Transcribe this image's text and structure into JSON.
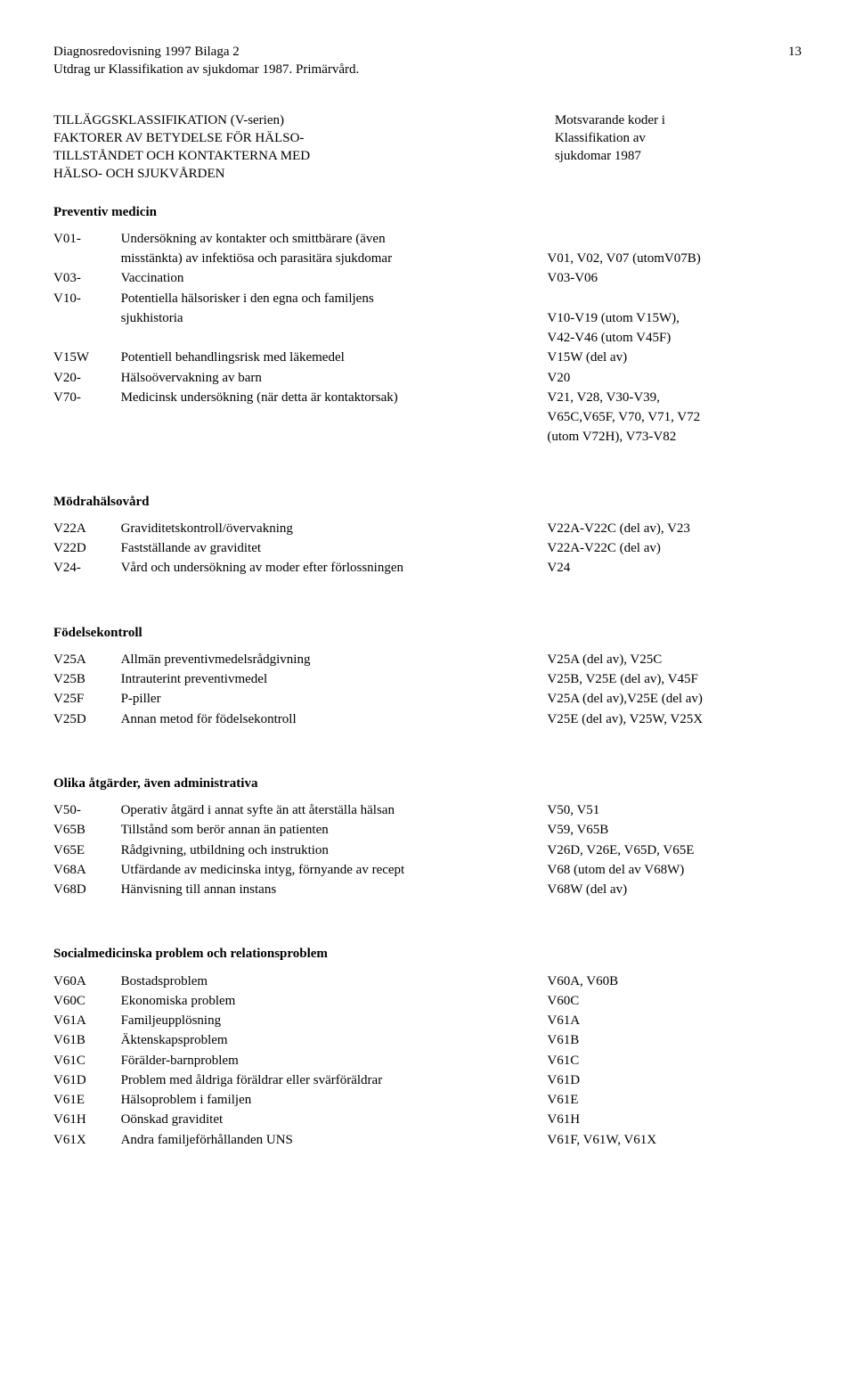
{
  "header": {
    "line1": "Diagnosredovisning 1997 Bilaga 2",
    "line2": "Utdrag ur Klassifikation av sjukdomar 1987. Primärvård.",
    "page_number": "13"
  },
  "tillagg": {
    "title": "TILLÄGGSKLASSIFIKATION (V-serien)",
    "left_line2": "FAKTORER AV BETYDELSE FÖR HÄLSO-",
    "left_line3": "TILLSTÅNDET OCH KONTAKTERNA MED",
    "left_line4": "HÄLSO- OCH SJUKVÅRDEN",
    "right_line1": "Motsvarande koder i",
    "right_line2": "Klassifikation av",
    "right_line3": "sjukdomar 1987"
  },
  "sections": [
    {
      "heading": "Preventiv medicin",
      "rows": [
        {
          "code": "V01-",
          "desc": "Undersökning av kontakter och smittbärare (även",
          "map": ""
        },
        {
          "code": "",
          "desc": "misstänkta) av infektiösa och parasitära sjukdomar",
          "map": "V01, V02, V07 (utomV07B)"
        },
        {
          "code": "V03-",
          "desc": "Vaccination",
          "map": "V03-V06"
        },
        {
          "code": "V10-",
          "desc": "Potentiella hälsorisker i den egna och familjens",
          "map": ""
        },
        {
          "code": "",
          "desc": "sjukhistoria",
          "map": "V10-V19 (utom V15W),"
        },
        {
          "code": "",
          "desc": "",
          "map": "V42-V46 (utom V45F)"
        },
        {
          "code": "V15W",
          "desc": "Potentiell behandlingsrisk med läkemedel",
          "map": "V15W (del av)"
        },
        {
          "code": "V20-",
          "desc": "Hälsoövervakning av barn",
          "map": "V20"
        },
        {
          "code": "V70-",
          "desc": "Medicinsk undersökning (när detta är kontaktorsak)",
          "map": "V21, V28, V30-V39,"
        },
        {
          "code": "",
          "desc": "",
          "map": "V65C,V65F, V70, V71, V72"
        },
        {
          "code": "",
          "desc": "",
          "map": "(utom V72H), V73-V82"
        }
      ]
    },
    {
      "heading": "Mödrahälsovård",
      "rows": [
        {
          "code": "V22A",
          "desc": "Graviditetskontroll/övervakning",
          "map": "V22A-V22C (del av), V23"
        },
        {
          "code": "V22D",
          "desc": "Fastställande av graviditet",
          "map": "V22A-V22C (del av)"
        },
        {
          "code": "V24-",
          "desc": "Vård och undersökning av moder efter förlossningen",
          "map": "V24"
        }
      ]
    },
    {
      "heading": "Födelsekontroll",
      "rows": [
        {
          "code": "V25A",
          "desc": "Allmän preventivmedelsrådgivning",
          "map": "V25A (del av), V25C"
        },
        {
          "code": "V25B",
          "desc": "Intrauterint preventivmedel",
          "map": "V25B, V25E (del av), V45F"
        },
        {
          "code": "V25F",
          "desc": "P-piller",
          "map": "V25A (del av),V25E (del av)"
        },
        {
          "code": "V25D",
          "desc": "Annan metod för födelsekontroll",
          "map": "V25E (del av), V25W, V25X"
        }
      ]
    },
    {
      "heading": "Olika åtgärder, även administrativa",
      "rows": [
        {
          "code": "V50-",
          "desc": "Operativ åtgärd i annat syfte än att återställa hälsan",
          "map": "V50, V51"
        },
        {
          "code": "V65B",
          "desc": "Tillstånd som berör annan än patienten",
          "map": "V59, V65B"
        },
        {
          "code": "V65E",
          "desc": "Rådgivning, utbildning och instruktion",
          "map": "V26D, V26E, V65D, V65E"
        },
        {
          "code": "V68A",
          "desc": "Utfärdande av medicinska intyg, förnyande av recept",
          "map": "V68 (utom del av V68W)"
        },
        {
          "code": "V68D",
          "desc": "Hänvisning till annan instans",
          "map": "V68W (del av)"
        }
      ]
    },
    {
      "heading": "Socialmedicinska problem och relationsproblem",
      "rows": [
        {
          "code": "V60A",
          "desc": "Bostadsproblem",
          "map": "V60A, V60B"
        },
        {
          "code": "V60C",
          "desc": "Ekonomiska problem",
          "map": "V60C"
        },
        {
          "code": "V61A",
          "desc": "Familjeupplösning",
          "map": "V61A"
        },
        {
          "code": "V61B",
          "desc": "Äktenskapsproblem",
          "map": "V61B"
        },
        {
          "code": "V61C",
          "desc": "Förälder-barnproblem",
          "map": "V61C"
        },
        {
          "code": "V61D",
          "desc": "Problem med åldriga föräldrar eller svärföräldrar",
          "map": "V61D"
        },
        {
          "code": "V61E",
          "desc": "Hälsoproblem i familjen",
          "map": "V61E"
        },
        {
          "code": "V61H",
          "desc": "Oönskad graviditet",
          "map": "V61H"
        },
        {
          "code": "V61X",
          "desc": "Andra familjeförhållanden UNS",
          "map": "V61F, V61W, V61X"
        }
      ]
    }
  ]
}
